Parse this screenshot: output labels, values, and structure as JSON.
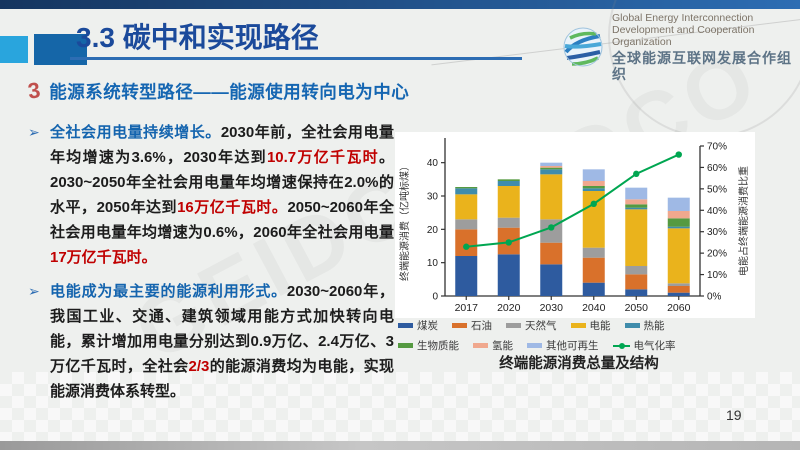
{
  "slide": {
    "header": {
      "title": "3.3 碳中和实现路径"
    },
    "logo": {
      "line1": "Global Energy Interconnection",
      "line2": "Development and Cooperation Organization",
      "line3": "全球能源互联网发展合作组织"
    },
    "section": {
      "icon": "3",
      "title": "能源系统转型路径——能源使用转向电为中心"
    },
    "bullets": [
      {
        "segments": [
          {
            "text": "全社会用电量持续增长。",
            "style": "lead"
          },
          {
            "text": "2030年前，全社会用电量年均增速为3.6%，2030年达到",
            "style": ""
          },
          {
            "text": "10.7万亿千瓦时",
            "style": "em"
          },
          {
            "text": "。2030~2050年全社会用电量年均增速保持在2.0%的水平，2050年达到",
            "style": ""
          },
          {
            "text": "16万亿千瓦时。",
            "style": "em"
          },
          {
            "text": "2050~2060年全社会用电量年均增速为0.6%，2060年全社会用电量",
            "style": ""
          },
          {
            "text": "17万亿千瓦时。",
            "style": "em"
          }
        ]
      },
      {
        "segments": [
          {
            "text": "电能成为最主要的能源利用形式。",
            "style": "lead"
          },
          {
            "text": "2030~2060年，我国工业、交通、建筑领域用能方式加快转向电能，累计增加用电量分别达到0.9万亿、2.4万亿、3万亿千瓦时，全社会",
            "style": ""
          },
          {
            "text": "2/3",
            "style": "em"
          },
          {
            "text": "的能源消费均为电能，实现能源消费体系转型。",
            "style": ""
          }
        ]
      }
    ],
    "watermark": "GEIDCO",
    "page_number": "19"
  },
  "chart_data": {
    "type": "bar",
    "title": "终端能源消费总量及结构",
    "categories": [
      "2017",
      "2020",
      "2030",
      "2040",
      "2050",
      "2060"
    ],
    "ylabel_left": "终端能源消费（亿吨标煤）",
    "ylabel_right": "电能占终端能源消费比重",
    "ylim_left": [
      0,
      45
    ],
    "yticks_left": [
      0,
      10,
      20,
      30,
      40
    ],
    "ylim_right_pct": [
      0,
      70
    ],
    "yticks_right_pct": [
      0,
      10,
      20,
      30,
      40,
      50,
      60,
      70
    ],
    "grid": false,
    "legend_position": "bottom",
    "series": [
      {
        "name": "煤炭",
        "color": "#2e5b9f",
        "values": [
          12.0,
          12.5,
          9.5,
          4.0,
          2.0,
          1.0
        ]
      },
      {
        "name": "石油",
        "color": "#d9712b",
        "values": [
          8.0,
          8.0,
          6.5,
          7.5,
          4.5,
          2.0
        ]
      },
      {
        "name": "天然气",
        "color": "#9d9d9d",
        "values": [
          3.0,
          3.0,
          7.0,
          3.0,
          2.5,
          0.8
        ]
      },
      {
        "name": "电能",
        "color": "#eab31c",
        "values": [
          7.5,
          9.5,
          13.5,
          17.0,
          17.0,
          16.5
        ]
      },
      {
        "name": "热能",
        "color": "#3f8cab",
        "values": [
          1.8,
          1.5,
          1.5,
          0.8,
          0.5,
          0.5
        ]
      },
      {
        "name": "生物质能",
        "color": "#559a41",
        "values": [
          0.4,
          0.5,
          0.5,
          0.7,
          1.0,
          2.5
        ]
      },
      {
        "name": "氢能",
        "color": "#f0a88e",
        "values": [
          0.0,
          0.0,
          0.5,
          1.5,
          1.5,
          2.2
        ]
      },
      {
        "name": "其他可再生",
        "color": "#9fb9e5",
        "values": [
          0.0,
          0.0,
          1.0,
          3.5,
          3.5,
          4.0
        ]
      }
    ],
    "line_series": {
      "name": "电气化率",
      "color": "#00a651",
      "values_pct": [
        23,
        25,
        32,
        43,
        57,
        66
      ]
    },
    "totals": [
      32.7,
      35.0,
      40.0,
      38.0,
      32.5,
      29.5
    ]
  }
}
